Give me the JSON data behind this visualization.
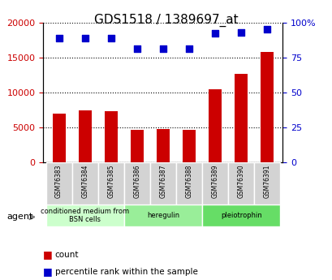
{
  "title": "GDS1518 / 1389697_at",
  "categories": [
    "GSM76383",
    "GSM76384",
    "GSM76385",
    "GSM76386",
    "GSM76387",
    "GSM76388",
    "GSM76389",
    "GSM76390",
    "GSM76391"
  ],
  "counts": [
    7000,
    7400,
    7300,
    4700,
    4800,
    4700,
    10400,
    12700,
    15800
  ],
  "percentiles": [
    89,
    89,
    89,
    81,
    81,
    81,
    92,
    93,
    95
  ],
  "ylim_left": [
    0,
    20000
  ],
  "ylim_right": [
    0,
    100
  ],
  "yticks_left": [
    0,
    5000,
    10000,
    15000,
    20000
  ],
  "yticks_right": [
    0,
    25,
    50,
    75,
    100
  ],
  "bar_color": "#cc0000",
  "dot_color": "#0000cc",
  "groups": [
    {
      "label": "conditioned medium from\nBSN cells",
      "start": 0,
      "end": 3,
      "color": "#ccffcc"
    },
    {
      "label": "heregulin",
      "start": 3,
      "end": 6,
      "color": "#99ee99"
    },
    {
      "label": "pleiotrophin",
      "start": 6,
      "end": 9,
      "color": "#66dd66"
    }
  ],
  "agent_label": "agent",
  "legend_count_label": "count",
  "legend_pct_label": "percentile rank within the sample",
  "background_color": "#ffffff",
  "plot_bg_color": "#ffffff",
  "grid_color": "#000000",
  "tick_label_color_left": "#cc0000",
  "tick_label_color_right": "#0000cc",
  "bar_width": 0.5
}
